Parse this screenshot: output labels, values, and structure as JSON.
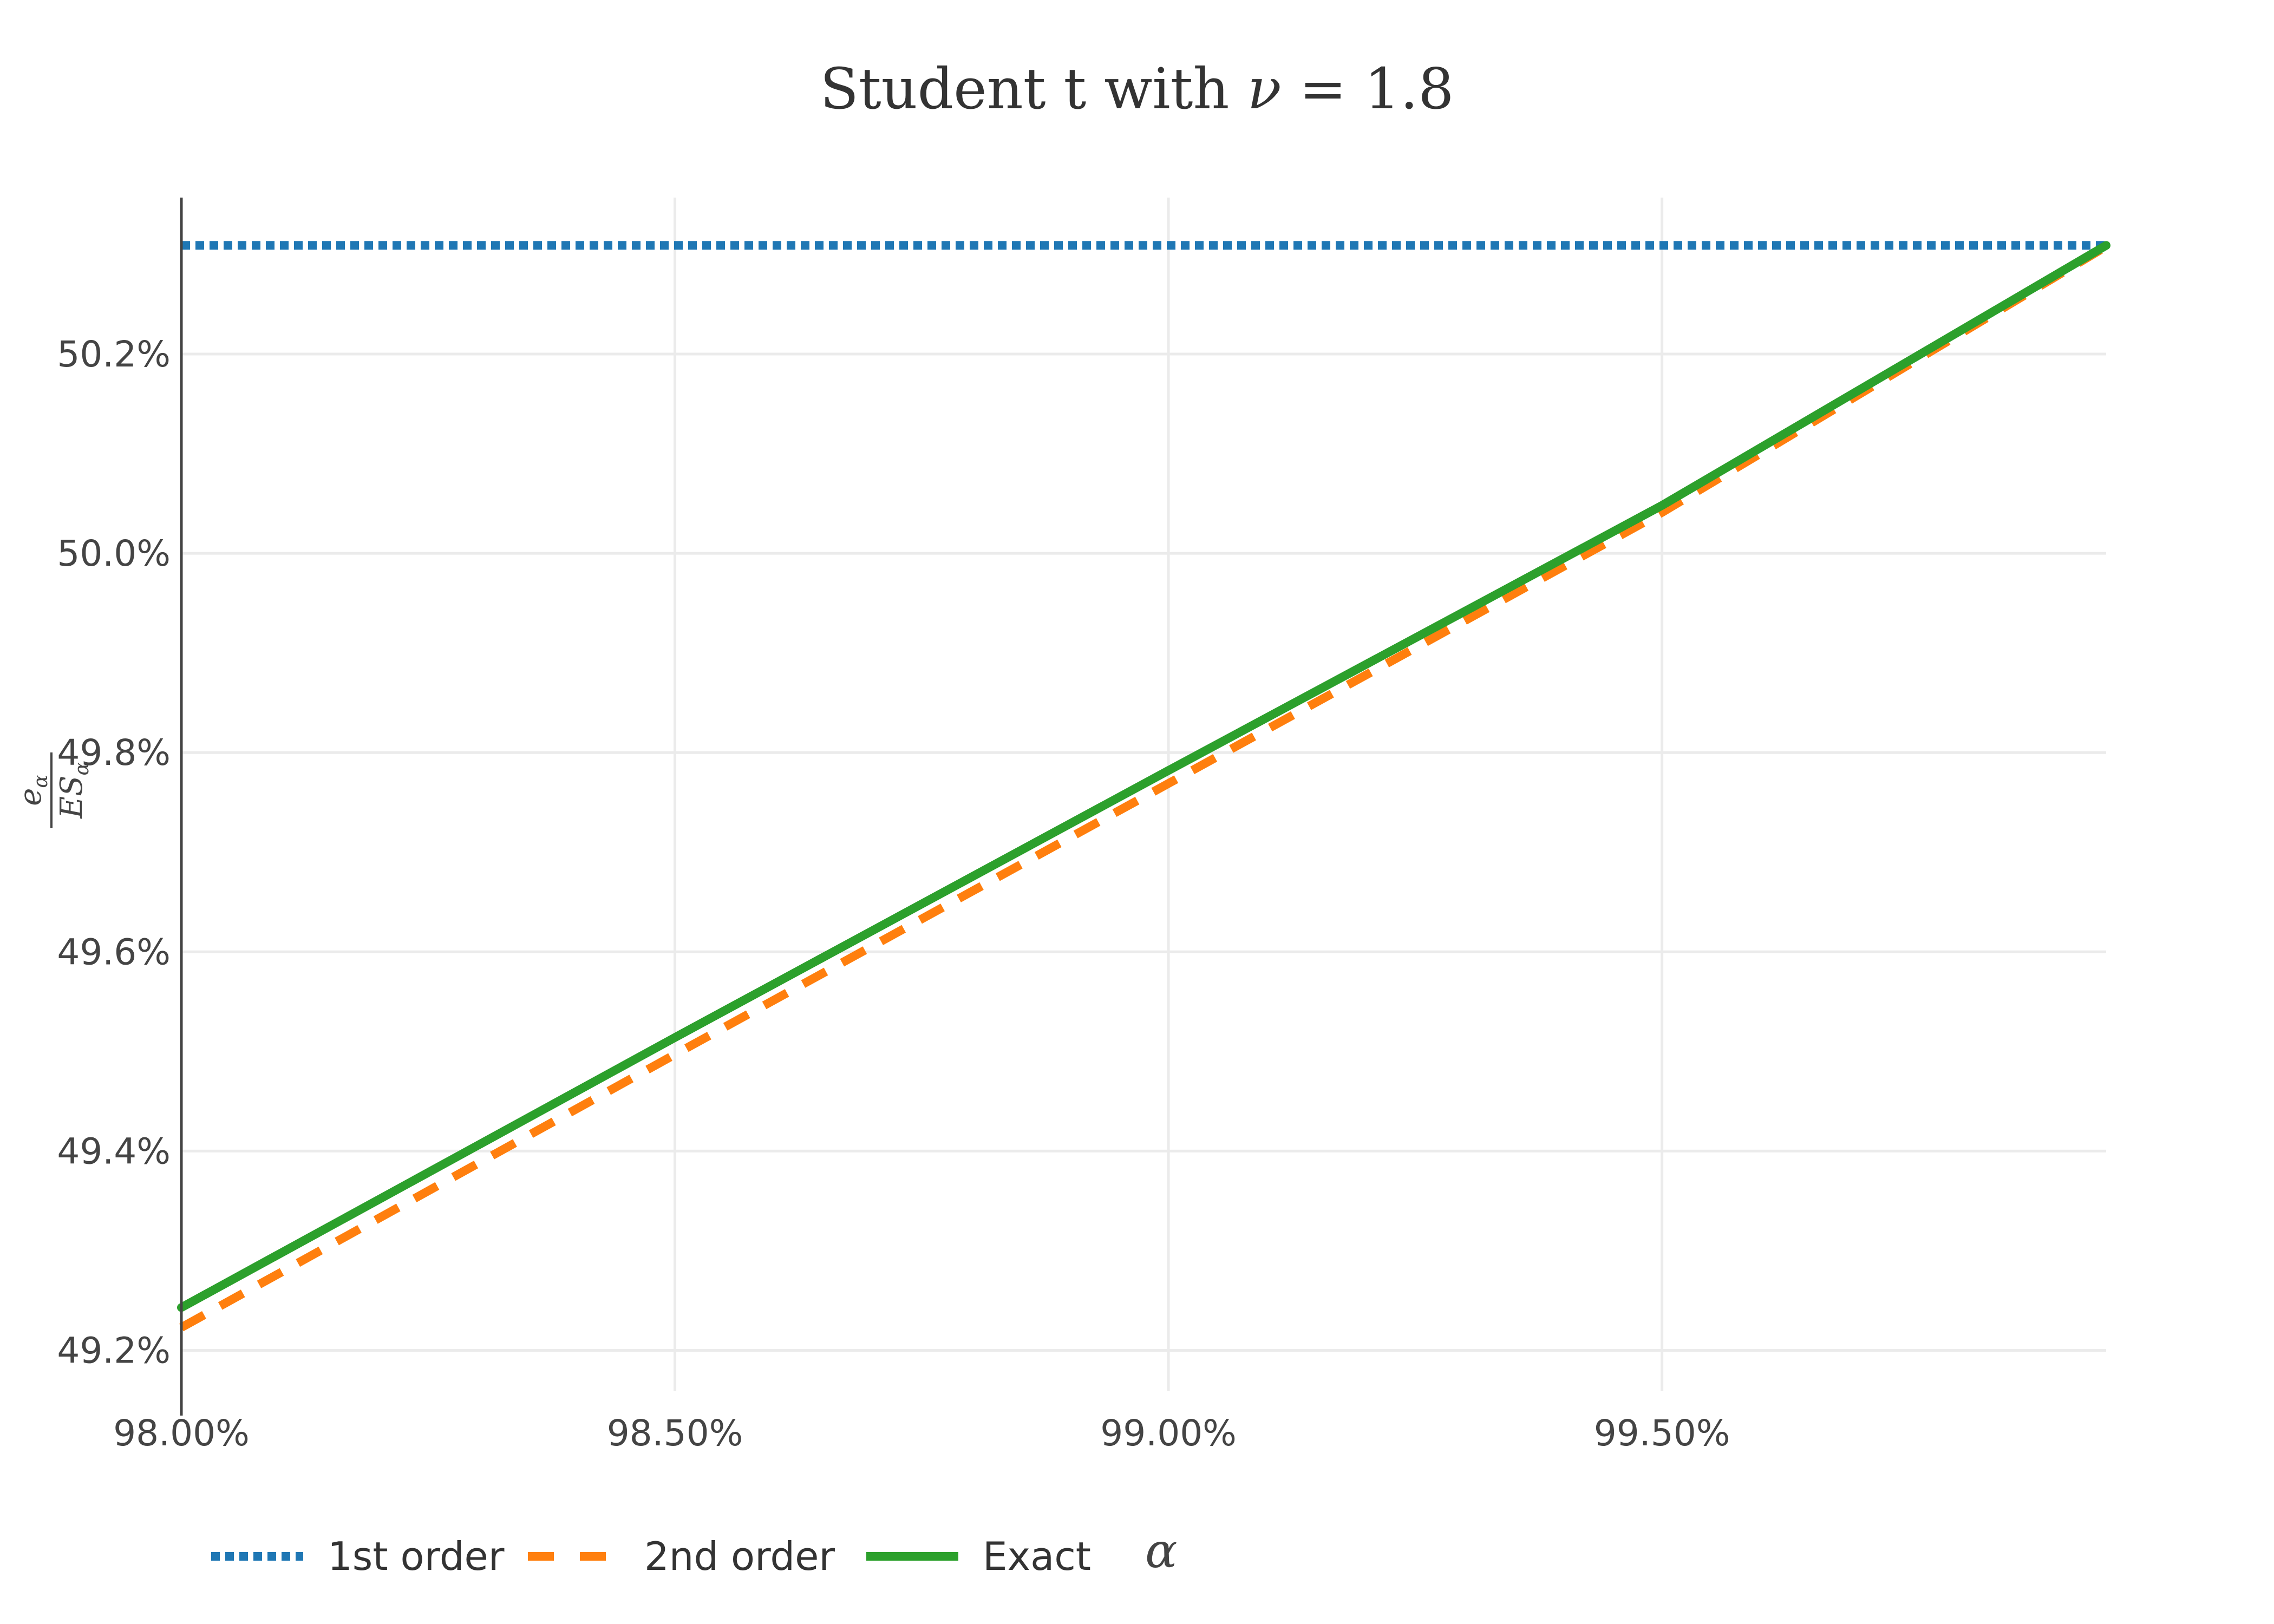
{
  "chart_data": {
    "type": "line",
    "title": "Student t with ν = 1.8",
    "title_parts": {
      "prefix": "Student t with ",
      "symbol": "ν",
      "suffix": " = 1.8"
    },
    "xlabel": "α",
    "ylabel": {
      "numerator": "e",
      "numerator_sub": "α",
      "denominator": "ES",
      "denominator_sub": "α"
    },
    "xlim": [
      0.98,
      0.9995
    ],
    "ylim": [
      0.49159,
      0.50357
    ],
    "x_ticks": [
      {
        "value": 0.98,
        "label": "98.00%"
      },
      {
        "value": 0.985,
        "label": "98.50%"
      },
      {
        "value": 0.99,
        "label": "99.00%"
      },
      {
        "value": 0.995,
        "label": "99.50%"
      }
    ],
    "y_ticks": [
      {
        "value": 0.492,
        "label": "49.2%"
      },
      {
        "value": 0.494,
        "label": "49.4%"
      },
      {
        "value": 0.496,
        "label": "49.6%"
      },
      {
        "value": 0.498,
        "label": "49.8%"
      },
      {
        "value": 0.5,
        "label": "50.0%"
      },
      {
        "value": 0.502,
        "label": "50.2%"
      }
    ],
    "grid": true,
    "legend_position": "bottom-left",
    "series": [
      {
        "name": "1st order",
        "color": "#1f77b4",
        "dash": "dot",
        "x": [
          0.98,
          0.9995
        ],
        "y": [
          0.50309,
          0.50309
        ]
      },
      {
        "name": "2nd order",
        "color": "#ff7f0e",
        "dash": "dash",
        "x": [
          0.98,
          0.985,
          0.99,
          0.995,
          0.9995
        ],
        "y": [
          0.49223,
          0.49497,
          0.49769,
          0.50041,
          0.50308
        ]
      },
      {
        "name": "Exact",
        "color": "#2ca02c",
        "dash": "solid",
        "x": [
          0.98,
          0.985,
          0.99,
          0.995,
          0.9995
        ],
        "y": [
          0.49243,
          0.49514,
          0.49782,
          0.50048,
          0.50309
        ]
      }
    ]
  }
}
